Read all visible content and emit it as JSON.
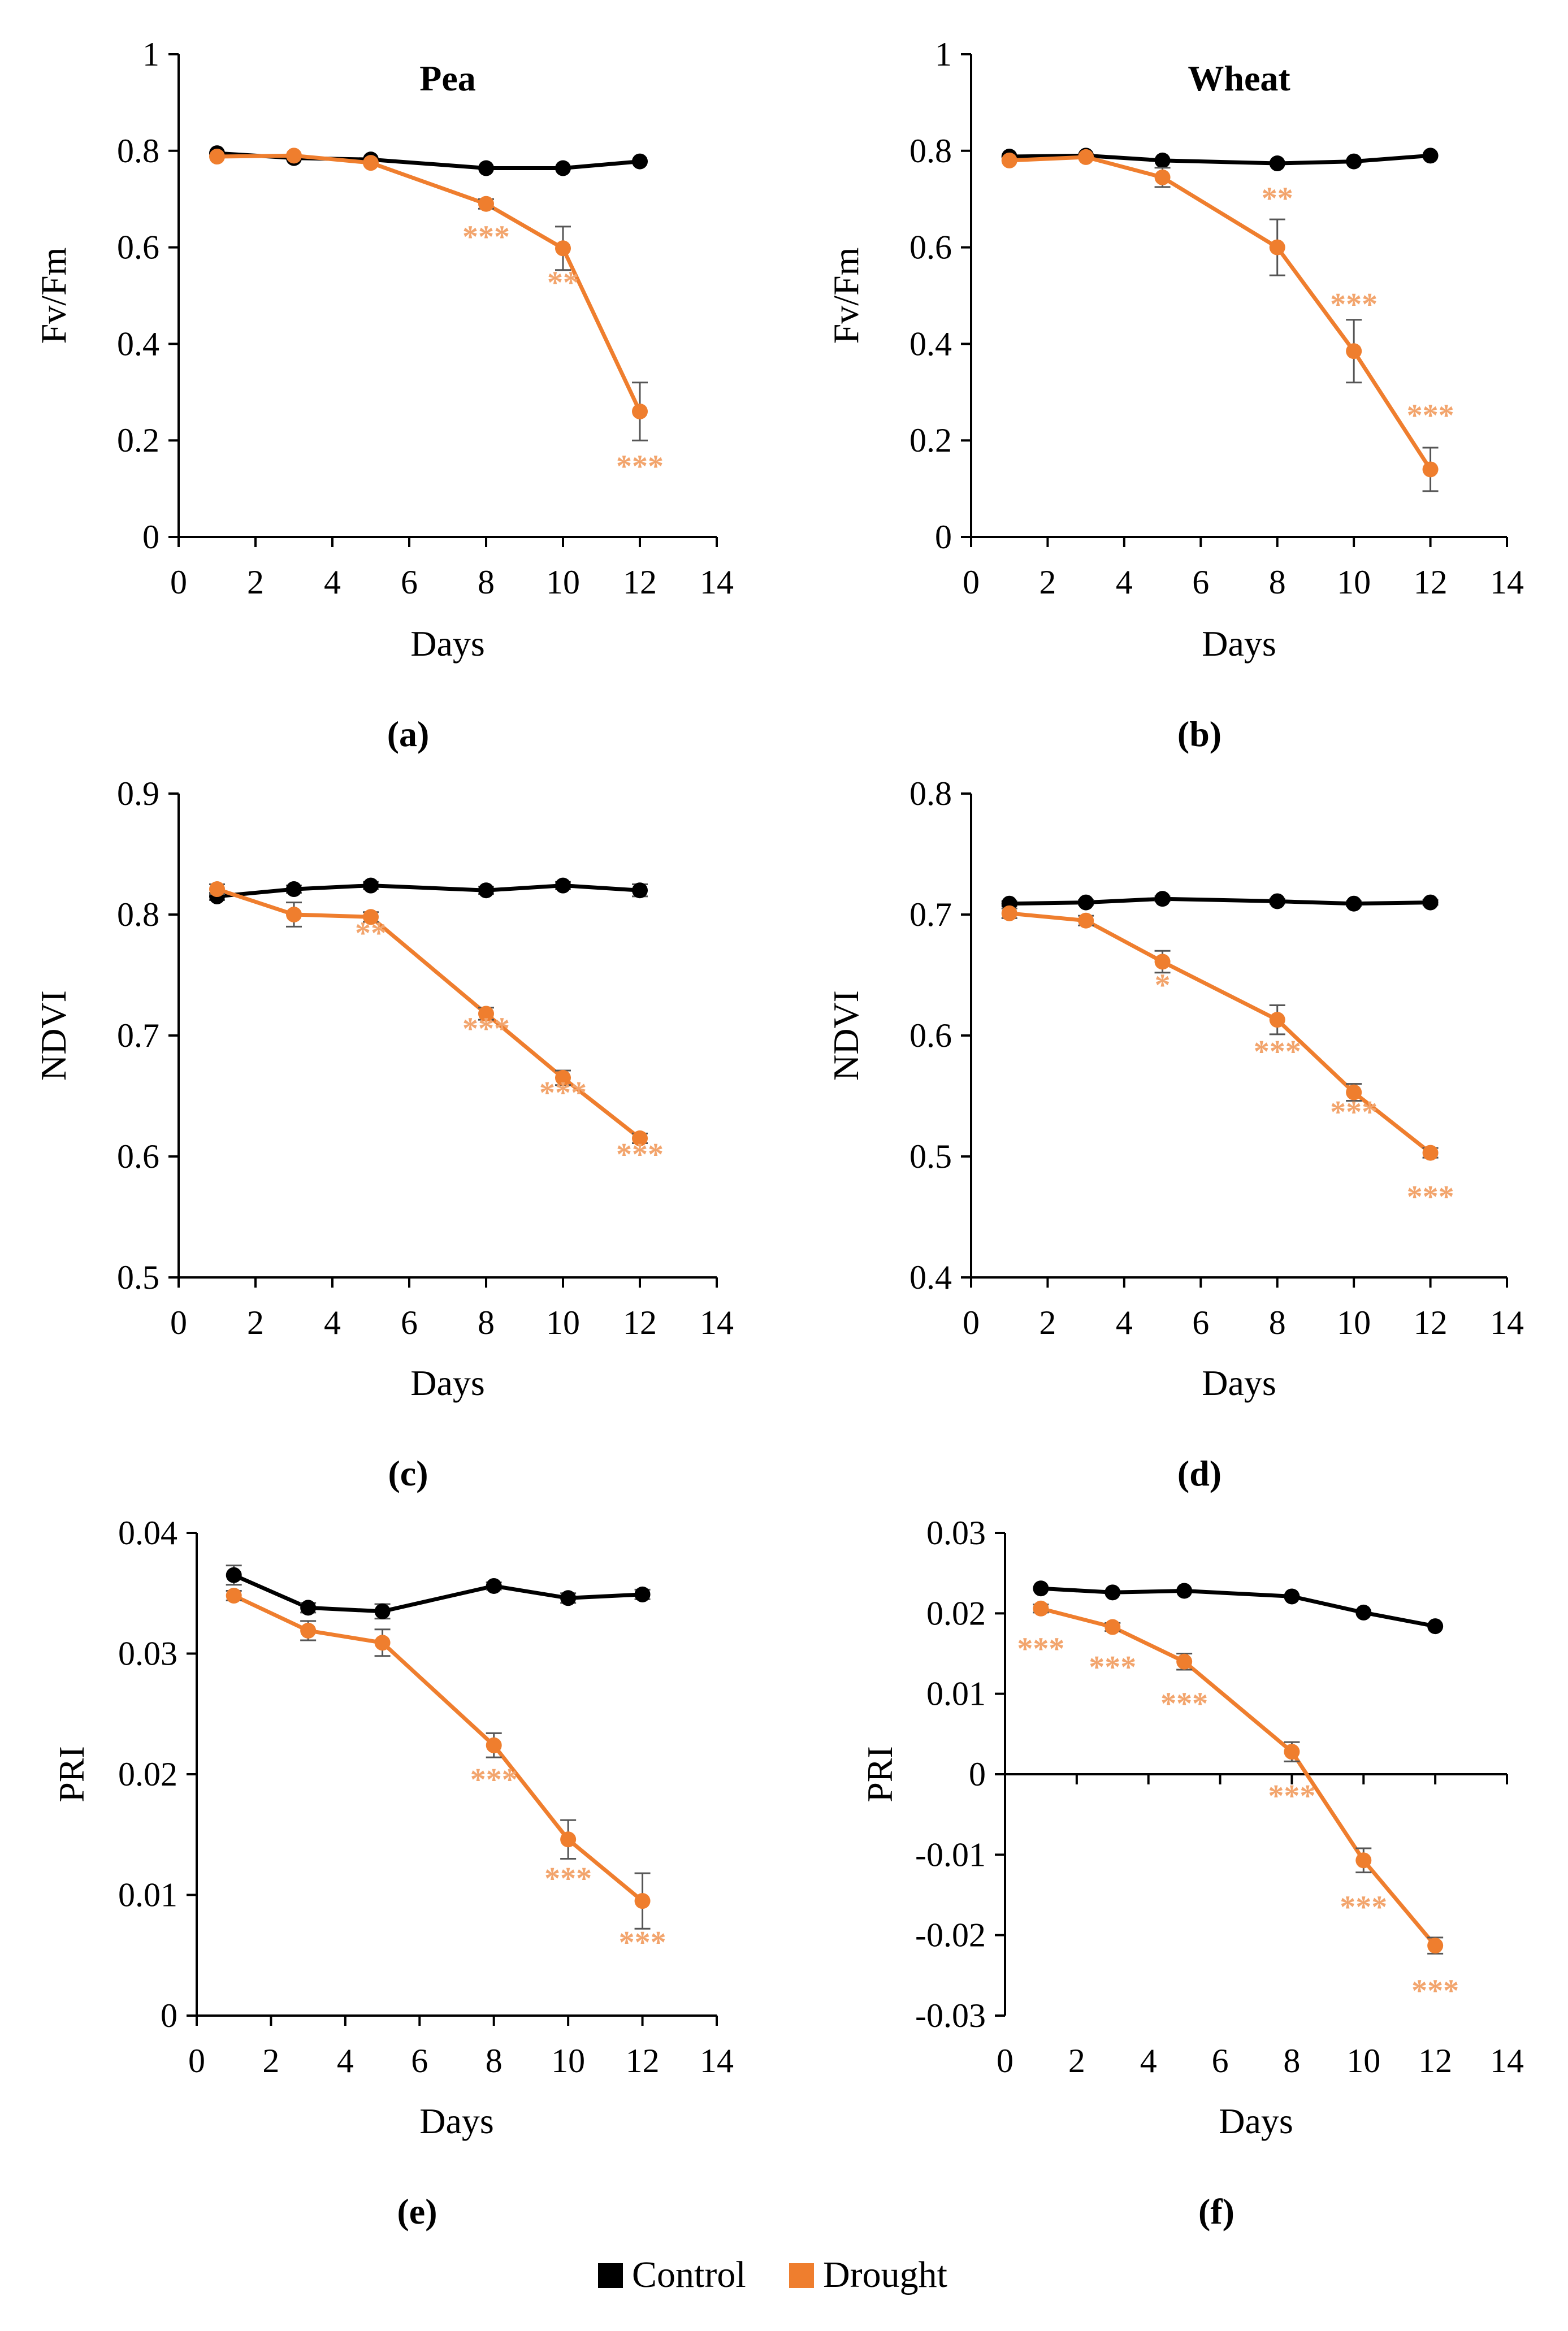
{
  "colors": {
    "control": "#000000",
    "drought": "#ef7e2e",
    "star": "#f2a46c",
    "errorbar": "#555555"
  },
  "legend": {
    "control": "Control",
    "drought": "Drought"
  },
  "chart_data": [
    {
      "type": "line",
      "panel": "(a)",
      "title": "Pea",
      "xlabel": "Days",
      "ylabel": "Fv/Fm",
      "x": [
        1,
        3,
        5,
        8,
        10,
        12
      ],
      "xlim": [
        0,
        14
      ],
      "xticks": [
        0,
        2,
        4,
        6,
        8,
        10,
        12,
        14
      ],
      "ylim": [
        0,
        1
      ],
      "yticks": [
        0,
        0.2,
        0.4,
        0.6,
        0.8,
        1
      ],
      "ytick_labels": [
        "0",
        "0.2",
        "0.4",
        "0.6",
        "0.8",
        "1"
      ],
      "series": [
        {
          "name": "Control",
          "values": [
            0.795,
            0.785,
            0.782,
            0.764,
            0.764,
            0.778
          ],
          "errors": [
            0,
            0,
            0,
            0,
            0,
            0
          ]
        },
        {
          "name": "Drought",
          "values": [
            0.788,
            0.79,
            0.775,
            0.69,
            0.598,
            0.26
          ],
          "errors": [
            0,
            0,
            0,
            0.01,
            0.045,
            0.06
          ]
        }
      ],
      "annotations": [
        {
          "x": 8,
          "y": 0.6,
          "text": "***"
        },
        {
          "x": 10,
          "y": 0.505,
          "text": "**"
        },
        {
          "x": 12,
          "y": 0.125,
          "text": "***"
        }
      ]
    },
    {
      "type": "line",
      "panel": "(b)",
      "title": "Wheat",
      "xlabel": "Days",
      "ylabel": "Fv/Fm",
      "x": [
        1,
        3,
        5,
        8,
        10,
        12
      ],
      "xlim": [
        0,
        14
      ],
      "xticks": [
        0,
        2,
        4,
        6,
        8,
        10,
        12,
        14
      ],
      "ylim": [
        0,
        1
      ],
      "yticks": [
        0,
        0.2,
        0.4,
        0.6,
        0.8,
        1
      ],
      "ytick_labels": [
        "0",
        "0.2",
        "0.4",
        "0.6",
        "0.8",
        "1"
      ],
      "series": [
        {
          "name": "Control",
          "values": [
            0.788,
            0.79,
            0.78,
            0.774,
            0.778,
            0.79
          ],
          "errors": [
            0,
            0,
            0,
            0,
            0,
            0
          ]
        },
        {
          "name": "Drought",
          "values": [
            0.78,
            0.787,
            0.745,
            0.6,
            0.385,
            0.14
          ],
          "errors": [
            0,
            0,
            0.02,
            0.058,
            0.065,
            0.045
          ]
        }
      ],
      "annotations": [
        {
          "x": 8,
          "y": 0.68,
          "text": "**"
        },
        {
          "x": 10,
          "y": 0.46,
          "text": "***"
        },
        {
          "x": 12,
          "y": 0.23,
          "text": "***"
        }
      ]
    },
    {
      "type": "line",
      "panel": "(c)",
      "title": "",
      "xlabel": "Days",
      "ylabel": "NDVI",
      "x": [
        1,
        3,
        5,
        8,
        10,
        12
      ],
      "xlim": [
        0,
        14
      ],
      "xticks": [
        0,
        2,
        4,
        6,
        8,
        10,
        12,
        14
      ],
      "ylim": [
        0.5,
        0.9
      ],
      "yticks": [
        0.5,
        0.6,
        0.7,
        0.8,
        0.9
      ],
      "ytick_labels": [
        "0.5",
        "0.6",
        "0.7",
        "0.8",
        "0.9"
      ],
      "series": [
        {
          "name": "Control",
          "values": [
            0.815,
            0.821,
            0.824,
            0.82,
            0.824,
            0.82
          ],
          "errors": [
            0.003,
            0.003,
            0.003,
            0.003,
            0.003,
            0.005
          ]
        },
        {
          "name": "Drought",
          "values": [
            0.821,
            0.8,
            0.798,
            0.718,
            0.665,
            0.615
          ],
          "errors": [
            0.004,
            0.01,
            0.004,
            0.005,
            0.006,
            0.004
          ]
        }
      ],
      "annotations": [
        {
          "x": 5,
          "y": 0.776,
          "text": "**"
        },
        {
          "x": 8,
          "y": 0.697,
          "text": "***"
        },
        {
          "x": 10,
          "y": 0.644,
          "text": "***"
        },
        {
          "x": 12,
          "y": 0.593,
          "text": "***"
        }
      ]
    },
    {
      "type": "line",
      "panel": "(d)",
      "title": "",
      "xlabel": "Days",
      "ylabel": "NDVI",
      "x": [
        1,
        3,
        5,
        8,
        10,
        12
      ],
      "xlim": [
        0,
        14
      ],
      "xticks": [
        0,
        2,
        4,
        6,
        8,
        10,
        12,
        14
      ],
      "ylim": [
        0.4,
        0.8
      ],
      "yticks": [
        0.4,
        0.5,
        0.6,
        0.7,
        0.8
      ],
      "ytick_labels": [
        "0.4",
        "0.5",
        "0.6",
        "0.7",
        "0.8"
      ],
      "series": [
        {
          "name": "Control",
          "values": [
            0.709,
            0.71,
            0.713,
            0.711,
            0.709,
            0.71
          ],
          "errors": [
            0.002,
            0.002,
            0.002,
            0.002,
            0.002,
            0.002
          ]
        },
        {
          "name": "Drought",
          "values": [
            0.701,
            0.695,
            0.661,
            0.613,
            0.553,
            0.503
          ],
          "errors": [
            0.004,
            0.004,
            0.009,
            0.012,
            0.007,
            0.004
          ]
        }
      ],
      "annotations": [
        {
          "x": 5,
          "y": 0.633,
          "text": "*"
        },
        {
          "x": 8,
          "y": 0.578,
          "text": "***"
        },
        {
          "x": 10,
          "y": 0.528,
          "text": "***"
        },
        {
          "x": 12,
          "y": 0.458,
          "text": "***"
        }
      ]
    },
    {
      "type": "line",
      "panel": "(e)",
      "title": "",
      "xlabel": "Days",
      "ylabel": "PRI",
      "x": [
        1,
        3,
        5,
        8,
        10,
        12
      ],
      "xlim": [
        0,
        14
      ],
      "xticks": [
        0,
        2,
        4,
        6,
        8,
        10,
        12,
        14
      ],
      "ylim": [
        0,
        0.04
      ],
      "yticks": [
        0,
        0.01,
        0.02,
        0.03,
        0.04
      ],
      "ytick_labels": [
        "0",
        "0.01",
        "0.02",
        "0.03",
        "0.04"
      ],
      "series": [
        {
          "name": "Control",
          "values": [
            0.0365,
            0.0338,
            0.0335,
            0.0356,
            0.0346,
            0.0349
          ],
          "errors": [
            0.0008,
            0.0004,
            0.0006,
            0.0003,
            0.0004,
            0.0004
          ]
        },
        {
          "name": "Drought",
          "values": [
            0.0348,
            0.0319,
            0.0309,
            0.0224,
            0.0146,
            0.0095
          ],
          "errors": [
            0.0004,
            0.0008,
            0.0011,
            0.001,
            0.0016,
            0.0023
          ]
        }
      ],
      "annotations": [
        {
          "x": 8,
          "y": 0.0187,
          "text": "***"
        },
        {
          "x": 10,
          "y": 0.0105,
          "text": "***"
        },
        {
          "x": 12,
          "y": 0.0052,
          "text": "***"
        }
      ]
    },
    {
      "type": "line",
      "panel": "(f)",
      "title": "",
      "xlabel": "Days",
      "ylabel": "PRI",
      "x": [
        1,
        3,
        5,
        8,
        10,
        12
      ],
      "xlim": [
        0,
        14
      ],
      "xticks": [
        0,
        2,
        4,
        6,
        8,
        10,
        12,
        14
      ],
      "ylim": [
        -0.03,
        0.03
      ],
      "yticks": [
        -0.03,
        -0.02,
        -0.01,
        0,
        0.01,
        0.02,
        0.03
      ],
      "ytick_labels": [
        "-0.03",
        "-0.02",
        "-0.01",
        "0",
        "0.01",
        "0.02",
        "0.03"
      ],
      "series": [
        {
          "name": "Control",
          "values": [
            0.0231,
            0.0226,
            0.0228,
            0.0221,
            0.0201,
            0.0184
          ],
          "errors": [
            0,
            0,
            0,
            0,
            0,
            0
          ]
        },
        {
          "name": "Drought",
          "values": [
            0.0206,
            0.0183,
            0.014,
            0.0028,
            -0.0107,
            -0.0213
          ],
          "errors": [
            0.0005,
            0.0005,
            0.001,
            0.0012,
            0.0015,
            0.001
          ]
        }
      ],
      "annotations": [
        {
          "x": 1,
          "y": 0.0143,
          "text": "***"
        },
        {
          "x": 3,
          "y": 0.012,
          "text": "***"
        },
        {
          "x": 5,
          "y": 0.0075,
          "text": "***"
        },
        {
          "x": 8,
          "y": -0.004,
          "text": "***"
        },
        {
          "x": 10,
          "y": -0.0178,
          "text": "***"
        },
        {
          "x": 12,
          "y": -0.0282,
          "text": "***"
        }
      ]
    }
  ]
}
